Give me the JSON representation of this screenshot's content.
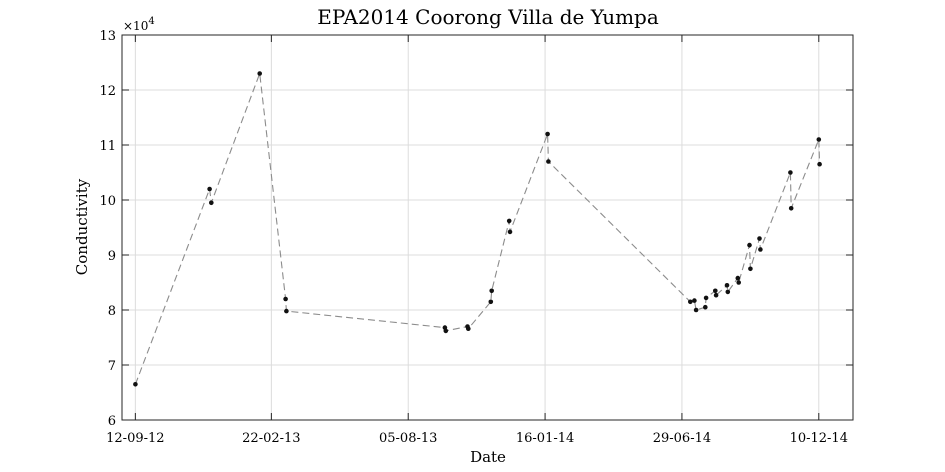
{
  "chart_data": {
    "type": "line",
    "title": "EPA2014 Coorong Villa de Yumpa",
    "xlabel": "Date",
    "ylabel": "Conductivity",
    "y_multiplier_label": "×10^4",
    "y_multiplier_base": "×10",
    "y_multiplier_exp": "4",
    "x_axis": {
      "type": "date",
      "xlim": [
        "2012-08-27",
        "2015-01-20"
      ],
      "ticks": [
        "2012-09-12",
        "2013-02-22",
        "2013-08-05",
        "2014-01-16",
        "2014-06-29",
        "2014-12-10"
      ],
      "tick_labels": [
        "12-09-12",
        "22-02-13",
        "05-08-13",
        "16-01-14",
        "29-06-14",
        "10-12-14"
      ]
    },
    "y_axis": {
      "ylim": [
        6,
        13
      ],
      "ticks": [
        6,
        7,
        8,
        9,
        10,
        11,
        12,
        13
      ],
      "tick_labels": [
        "6",
        "7",
        "8",
        "9",
        "10",
        "11",
        "12",
        "13"
      ],
      "scale_factor": 10000
    },
    "grid": true,
    "line_style": "dashed",
    "marker": "dot",
    "series": [
      {
        "points": [
          {
            "x": "2012-09-12",
            "y": 66500
          },
          {
            "x": "2012-12-10",
            "y": 102000
          },
          {
            "x": "2012-12-12",
            "y": 99500
          },
          {
            "x": "2013-02-08",
            "y": 123000
          },
          {
            "x": "2013-03-11",
            "y": 82000
          },
          {
            "x": "2013-03-12",
            "y": 79800
          },
          {
            "x": "2013-09-18",
            "y": 76800
          },
          {
            "x": "2013-09-19",
            "y": 76200
          },
          {
            "x": "2013-10-15",
            "y": 77000
          },
          {
            "x": "2013-10-16",
            "y": 76600
          },
          {
            "x": "2013-11-12",
            "y": 81500
          },
          {
            "x": "2013-11-13",
            "y": 83500
          },
          {
            "x": "2013-12-04",
            "y": 96200
          },
          {
            "x": "2013-12-05",
            "y": 94200
          },
          {
            "x": "2014-01-19",
            "y": 112000
          },
          {
            "x": "2014-01-20",
            "y": 107000
          },
          {
            "x": "2014-07-09",
            "y": 81500
          },
          {
            "x": "2014-07-14",
            "y": 81700
          },
          {
            "x": "2014-07-16",
            "y": 80000
          },
          {
            "x": "2014-07-27",
            "y": 80500
          },
          {
            "x": "2014-07-28",
            "y": 82200
          },
          {
            "x": "2014-08-08",
            "y": 83500
          },
          {
            "x": "2014-08-09",
            "y": 82700
          },
          {
            "x": "2014-08-22",
            "y": 84500
          },
          {
            "x": "2014-08-23",
            "y": 83300
          },
          {
            "x": "2014-09-04",
            "y": 85800
          },
          {
            "x": "2014-09-05",
            "y": 85000
          },
          {
            "x": "2014-09-18",
            "y": 91800
          },
          {
            "x": "2014-09-19",
            "y": 87500
          },
          {
            "x": "2014-09-30",
            "y": 93000
          },
          {
            "x": "2014-10-01",
            "y": 91000
          },
          {
            "x": "2014-11-06",
            "y": 105000
          },
          {
            "x": "2014-11-07",
            "y": 98500
          },
          {
            "x": "2014-12-10",
            "y": 111000
          },
          {
            "x": "2014-12-11",
            "y": 106500
          }
        ]
      }
    ]
  }
}
